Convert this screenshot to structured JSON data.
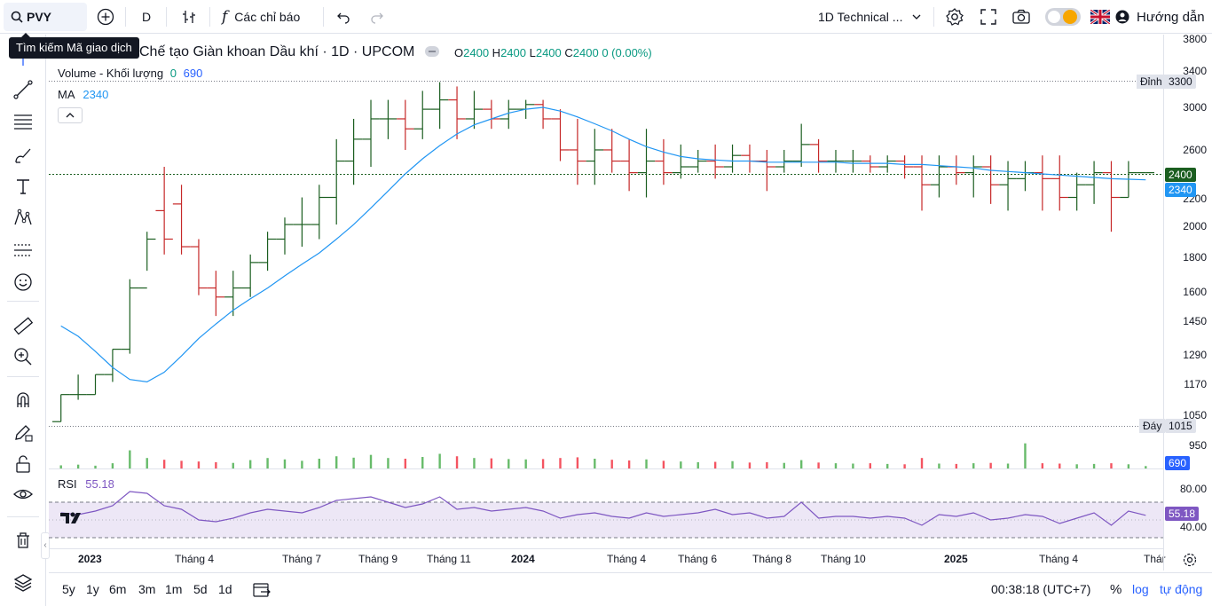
{
  "toolbar": {
    "symbol": "PVY",
    "interval": "D",
    "indicators_label": "Các chỉ báo",
    "layout_name": "1D Technical ...",
    "guide_label": "Hướng dẫn"
  },
  "tooltip": "Tìm kiếm Mã giao dịch",
  "legend": {
    "title": "Chế tạo Giàn khoan Dầu khí · 1D · UPCOM",
    "o_label": "O",
    "o_value": "2400",
    "h_label": "H",
    "h_value": "2400",
    "l_label": "L",
    "l_value": "2400",
    "c_label": "C",
    "c_value": "2400",
    "change": "0 (0.00%)",
    "volume_label": "Volume - Khối lượng",
    "volume_val1": "0",
    "volume_val2": "690",
    "ma_label": "MA",
    "ma_value": "2340",
    "rsi_label": "RSI",
    "rsi_value": "55.18"
  },
  "price_scale": {
    "ticks": [
      "3800",
      "3400",
      "3000",
      "2600",
      "2200",
      "2000",
      "1800",
      "1600",
      "1450",
      "1290",
      "1170",
      "1050",
      "950"
    ],
    "last_price": "2400",
    "ma_price": "2340",
    "volume_tag": "690",
    "high_label": "Đỉnh",
    "high_value": "3300",
    "low_label": "Đáy",
    "low_value": "1015",
    "rsi_ticks": [
      "80.00",
      "40.00"
    ],
    "rsi_tag": "55.18"
  },
  "time_axis": [
    "2023",
    "Tháng 4",
    "Tháng 7",
    "Tháng 9",
    "Tháng 11",
    "2024",
    "Tháng 4",
    "Tháng 6",
    "Tháng 8",
    "Tháng 10",
    "2025",
    "Tháng 4",
    "Thár"
  ],
  "bottom": {
    "ranges": [
      "5y",
      "1y",
      "6m",
      "3m",
      "1m",
      "5d",
      "1d"
    ],
    "clock": "00:38:18 (UTC+7)",
    "percent": "%",
    "log": "log",
    "auto": "tự động"
  },
  "colors": {
    "up": "#089981",
    "down": "#f23645",
    "bar_up": "#1b5e20",
    "bar_down": "#c62828",
    "ma": "#2196f3",
    "rsi": "#7e57c2",
    "rsi_band": "#ede7f6"
  },
  "chart_data": {
    "type": "ohlc",
    "price_axis": {
      "type": "log",
      "range": [
        900,
        3900
      ]
    },
    "rsi_range": [
      20,
      100
    ],
    "volume_range": [
      0,
      15000
    ],
    "series": [
      {
        "t": "2023-01-03",
        "o": 1000,
        "h": 1100,
        "l": 1000,
        "c": 1100,
        "v": 900
      },
      {
        "t": "2023-01-13",
        "o": 1100,
        "h": 1180,
        "l": 1080,
        "c": 1100,
        "v": 1100
      },
      {
        "t": "2023-01-31",
        "o": 1100,
        "h": 1180,
        "l": 1100,
        "c": 1180,
        "v": 800
      },
      {
        "t": "2023-02-10",
        "o": 1180,
        "h": 1290,
        "l": 1150,
        "c": 1290,
        "v": 1500
      },
      {
        "t": "2023-02-24",
        "o": 1290,
        "h": 1650,
        "l": 1270,
        "c": 1600,
        "v": 5200
      },
      {
        "t": "2023-03-08",
        "o": 1600,
        "h": 1950,
        "l": 1700,
        "c": 1900,
        "v": 3000
      },
      {
        "t": "2023-03-20",
        "o": 2100,
        "h": 2450,
        "l": 1800,
        "c": 1900,
        "v": 2500
      },
      {
        "t": "2023-03-31",
        "o": 2150,
        "h": 2300,
        "l": 1800,
        "c": 1850,
        "v": 2200
      },
      {
        "t": "2023-04-12",
        "o": 1850,
        "h": 1900,
        "l": 1560,
        "c": 1600,
        "v": 2000
      },
      {
        "t": "2023-04-25",
        "o": 1600,
        "h": 1700,
        "l": 1450,
        "c": 1550,
        "v": 1800
      },
      {
        "t": "2023-05-10",
        "o": 1550,
        "h": 1700,
        "l": 1450,
        "c": 1600,
        "v": 1600
      },
      {
        "t": "2023-05-24",
        "o": 1600,
        "h": 1800,
        "l": 1550,
        "c": 1750,
        "v": 2400
      },
      {
        "t": "2023-06-07",
        "o": 1750,
        "h": 1950,
        "l": 1700,
        "c": 1900,
        "v": 3000
      },
      {
        "t": "2023-06-21",
        "o": 1900,
        "h": 2050,
        "l": 1800,
        "c": 2000,
        "v": 2600
      },
      {
        "t": "2023-07-05",
        "o": 2000,
        "h": 2200,
        "l": 1850,
        "c": 2000,
        "v": 2200
      },
      {
        "t": "2023-07-19",
        "o": 2000,
        "h": 2300,
        "l": 1900,
        "c": 2200,
        "v": 2800
      },
      {
        "t": "2023-08-02",
        "o": 2200,
        "h": 2700,
        "l": 2000,
        "c": 2500,
        "v": 3500
      },
      {
        "t": "2023-08-16",
        "o": 2500,
        "h": 2900,
        "l": 2300,
        "c": 2700,
        "v": 3100
      },
      {
        "t": "2023-08-30",
        "o": 2700,
        "h": 3100,
        "l": 2450,
        "c": 2900,
        "v": 3900
      },
      {
        "t": "2023-09-13",
        "o": 2900,
        "h": 3100,
        "l": 2700,
        "c": 2900,
        "v": 3000
      },
      {
        "t": "2023-09-27",
        "o": 2900,
        "h": 3100,
        "l": 2600,
        "c": 2800,
        "v": 2800
      },
      {
        "t": "2023-10-11",
        "o": 2800,
        "h": 3200,
        "l": 2700,
        "c": 3000,
        "v": 3300
      },
      {
        "t": "2023-10-25",
        "o": 3000,
        "h": 3300,
        "l": 2800,
        "c": 3100,
        "v": 4200
      },
      {
        "t": "2023-11-08",
        "o": 3100,
        "h": 3250,
        "l": 2700,
        "c": 2900,
        "v": 3500
      },
      {
        "t": "2023-11-22",
        "o": 2900,
        "h": 3200,
        "l": 2800,
        "c": 3000,
        "v": 3000
      },
      {
        "t": "2023-12-06",
        "o": 3000,
        "h": 3100,
        "l": 2800,
        "c": 2900,
        "v": 2900
      },
      {
        "t": "2023-12-20",
        "o": 2900,
        "h": 3100,
        "l": 2800,
        "c": 3000,
        "v": 2700
      },
      {
        "t": "2024-01-08",
        "o": 3000,
        "h": 3100,
        "l": 2900,
        "c": 3050,
        "v": 2600
      },
      {
        "t": "2024-01-22",
        "o": 3050,
        "h": 3100,
        "l": 2800,
        "c": 2900,
        "v": 2700
      },
      {
        "t": "2024-02-05",
        "o": 2900,
        "h": 3000,
        "l": 2500,
        "c": 2600,
        "v": 3000
      },
      {
        "t": "2024-02-26",
        "o": 2600,
        "h": 2900,
        "l": 2300,
        "c": 2500,
        "v": 3200
      },
      {
        "t": "2024-03-11",
        "o": 2500,
        "h": 2800,
        "l": 2300,
        "c": 2600,
        "v": 2800
      },
      {
        "t": "2024-03-25",
        "o": 2600,
        "h": 2800,
        "l": 2400,
        "c": 2500,
        "v": 2500
      },
      {
        "t": "2024-04-08",
        "o": 2500,
        "h": 2700,
        "l": 2250,
        "c": 2400,
        "v": 2300
      },
      {
        "t": "2024-04-22",
        "o": 2400,
        "h": 2800,
        "l": 2200,
        "c": 2500,
        "v": 2600
      },
      {
        "t": "2024-05-06",
        "o": 2500,
        "h": 2700,
        "l": 2300,
        "c": 2400,
        "v": 2200
      },
      {
        "t": "2024-05-20",
        "o": 2400,
        "h": 2650,
        "l": 2350,
        "c": 2450,
        "v": 2000
      },
      {
        "t": "2024-06-03",
        "o": 2450,
        "h": 2600,
        "l": 2400,
        "c": 2500,
        "v": 1800
      },
      {
        "t": "2024-06-17",
        "o": 2500,
        "h": 2650,
        "l": 2350,
        "c": 2450,
        "v": 1900
      },
      {
        "t": "2024-07-01",
        "o": 2450,
        "h": 2650,
        "l": 2400,
        "c": 2550,
        "v": 2100
      },
      {
        "t": "2024-07-15",
        "o": 2550,
        "h": 2650,
        "l": 2400,
        "c": 2500,
        "v": 1700
      },
      {
        "t": "2024-07-29",
        "o": 2500,
        "h": 2600,
        "l": 2250,
        "c": 2450,
        "v": 1800
      },
      {
        "t": "2024-08-12",
        "o": 2450,
        "h": 2600,
        "l": 2400,
        "c": 2500,
        "v": 1600
      },
      {
        "t": "2024-08-26",
        "o": 2500,
        "h": 2850,
        "l": 2450,
        "c": 2650,
        "v": 2400
      },
      {
        "t": "2024-09-09",
        "o": 2650,
        "h": 2700,
        "l": 2400,
        "c": 2500,
        "v": 1700
      },
      {
        "t": "2024-09-23",
        "o": 2500,
        "h": 2600,
        "l": 2400,
        "c": 2500,
        "v": 1500
      },
      {
        "t": "2024-10-07",
        "o": 2500,
        "h": 2600,
        "l": 2400,
        "c": 2500,
        "v": 1400
      },
      {
        "t": "2024-10-21",
        "o": 2500,
        "h": 2550,
        "l": 2400,
        "c": 2450,
        "v": 1500
      },
      {
        "t": "2024-11-04",
        "o": 2450,
        "h": 2550,
        "l": 2400,
        "c": 2500,
        "v": 1300
      },
      {
        "t": "2024-11-18",
        "o": 2500,
        "h": 2550,
        "l": 2350,
        "c": 2450,
        "v": 1200
      },
      {
        "t": "2024-12-02",
        "o": 2450,
        "h": 2550,
        "l": 2100,
        "c": 2300,
        "v": 3000
      },
      {
        "t": "2024-12-16",
        "o": 2300,
        "h": 2550,
        "l": 2200,
        "c": 2450,
        "v": 1400
      },
      {
        "t": "2025-01-06",
        "o": 2450,
        "h": 2550,
        "l": 2300,
        "c": 2400,
        "v": 1300
      },
      {
        "t": "2025-01-20",
        "o": 2400,
        "h": 2550,
        "l": 2200,
        "c": 2450,
        "v": 1500
      },
      {
        "t": "2025-02-10",
        "o": 2450,
        "h": 2550,
        "l": 2150,
        "c": 2300,
        "v": 1600
      },
      {
        "t": "2025-02-24",
        "o": 2300,
        "h": 2500,
        "l": 2100,
        "c": 2350,
        "v": 1400
      },
      {
        "t": "2025-03-10",
        "o": 2350,
        "h": 2500,
        "l": 2250,
        "c": 2400,
        "v": 7200
      },
      {
        "t": "2025-03-24",
        "o": 2400,
        "h": 2550,
        "l": 2100,
        "c": 2350,
        "v": 1500
      },
      {
        "t": "2025-04-07",
        "o": 2350,
        "h": 2550,
        "l": 2100,
        "c": 2200,
        "v": 1400
      },
      {
        "t": "2025-04-21",
        "o": 2200,
        "h": 2400,
        "l": 2100,
        "c": 2300,
        "v": 1200
      },
      {
        "t": "2025-05-05",
        "o": 2300,
        "h": 2500,
        "l": 2150,
        "c": 2400,
        "v": 1300
      },
      {
        "t": "2025-05-19",
        "o": 2400,
        "h": 2500,
        "l": 1950,
        "c": 2200,
        "v": 1500
      },
      {
        "t": "2025-06-02",
        "o": 2200,
        "h": 2500,
        "l": 2200,
        "c": 2400,
        "v": 1200
      },
      {
        "t": "2025-06-16",
        "o": 2400,
        "h": 2400,
        "l": 2400,
        "c": 2400,
        "v": 690
      }
    ],
    "ma": [
      1400,
      1350,
      1280,
      1210,
      1160,
      1150,
      1190,
      1260,
      1340,
      1410,
      1480,
      1540,
      1600,
      1670,
      1740,
      1810,
      1900,
      2000,
      2120,
      2250,
      2390,
      2520,
      2640,
      2750,
      2840,
      2900,
      2960,
      3000,
      3020,
      2980,
      2920,
      2850,
      2780,
      2700,
      2630,
      2580,
      2540,
      2520,
      2510,
      2500,
      2500,
      2490,
      2490,
      2490,
      2490,
      2490,
      2480,
      2480,
      2480,
      2470,
      2470,
      2460,
      2450,
      2440,
      2420,
      2410,
      2400,
      2390,
      2380,
      2370,
      2360,
      2350,
      2345,
      2340
    ],
    "rsi": [
      58,
      56,
      60,
      66,
      82,
      80,
      66,
      62,
      50,
      48,
      52,
      58,
      62,
      60,
      58,
      64,
      72,
      74,
      76,
      70,
      64,
      68,
      76,
      62,
      64,
      60,
      62,
      64,
      60,
      52,
      56,
      58,
      54,
      52,
      58,
      54,
      56,
      58,
      62,
      56,
      58,
      52,
      54,
      70,
      52,
      54,
      54,
      52,
      54,
      52,
      44,
      56,
      54,
      58,
      50,
      52,
      56,
      54,
      46,
      52,
      58,
      44,
      60,
      55.18
    ]
  }
}
